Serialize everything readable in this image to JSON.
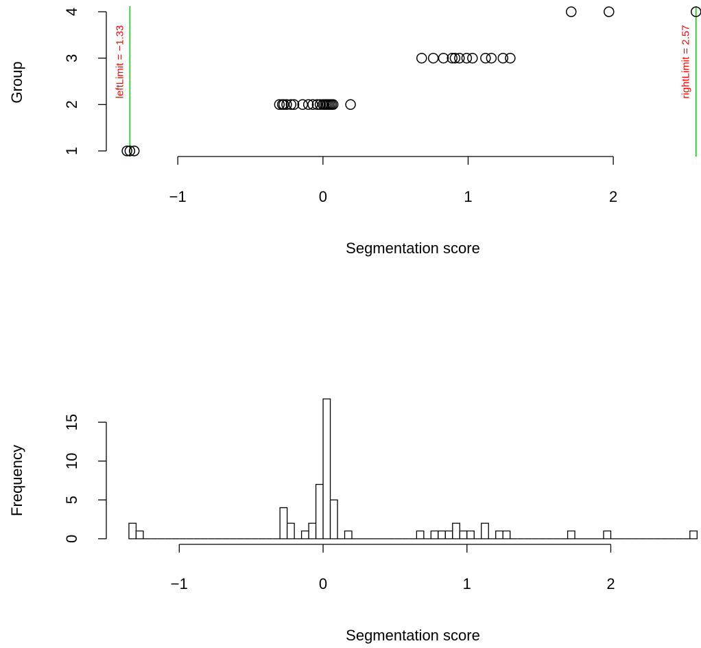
{
  "chart_data": [
    {
      "type": "scatter",
      "xlabel": "Segmentation score",
      "ylabel": "Group",
      "x": [
        -1.35,
        -1.33,
        -1.3,
        -0.3,
        -0.28,
        -0.27,
        -0.25,
        -0.22,
        -0.2,
        -0.14,
        -0.1,
        -0.07,
        -0.04,
        -0.02,
        0,
        0.01,
        0.02,
        0.03,
        0.04,
        0.05,
        0.06,
        0.07,
        0.19,
        0.68,
        0.76,
        0.83,
        0.89,
        0.91,
        0.94,
        0.99,
        1.03,
        1.12,
        1.16,
        1.24,
        1.29,
        1.71,
        1.97,
        2.57
      ],
      "y": [
        1,
        1,
        1,
        2,
        2,
        2,
        2,
        2,
        2,
        2,
        2,
        2,
        2,
        2,
        2,
        2,
        2,
        2,
        2,
        2,
        2,
        2,
        2,
        3,
        3,
        3,
        3,
        3,
        3,
        3,
        3,
        3,
        3,
        3,
        3,
        4,
        4,
        4
      ],
      "color": "#000000",
      "xlim": [
        -1.49,
        2.59
      ],
      "ylim": [
        0.88,
        4.12
      ],
      "xticks": [
        {
          "value": -1,
          "label": "−1"
        },
        0,
        1,
        2
      ],
      "yticks": [
        1,
        2,
        3,
        4
      ],
      "vlines": [
        {
          "value": -1.33,
          "label": "leftLimit = −1.33"
        },
        {
          "value": 2.57,
          "label": "rightLimit = 2.57"
        }
      ],
      "vline_color": "#00cc00",
      "vline_label_color": "#ff0000"
    },
    {
      "type": "histogram",
      "xlabel": "Segmentation score",
      "ylabel": "Frequency",
      "bins": [
        -1.35,
        -1.3,
        -1.25,
        -1.2,
        -1.15,
        -1.1,
        -1.05,
        -1,
        -0.95,
        -0.9,
        -0.85,
        -0.8,
        -0.75,
        -0.7,
        -0.65,
        -0.6,
        -0.55,
        -0.5,
        -0.45,
        -0.4,
        -0.35,
        -0.3,
        -0.25,
        -0.2,
        -0.15,
        -0.1,
        -0.05,
        0,
        0.05,
        0.1,
        0.15,
        0.2,
        0.25,
        0.3,
        0.35,
        0.4,
        0.45,
        0.5,
        0.55,
        0.6,
        0.65,
        0.7,
        0.75,
        0.8,
        0.85,
        0.9,
        0.95,
        1,
        1.05,
        1.1,
        1.15,
        1.2,
        1.25,
        1.3,
        1.35,
        1.4,
        1.45,
        1.5,
        1.55,
        1.6,
        1.65,
        1.7,
        1.75,
        1.8,
        1.85,
        1.9,
        1.95,
        2,
        2.05,
        2.1,
        2.15,
        2.2,
        2.25,
        2.3,
        2.35,
        2.4,
        2.45,
        2.5,
        2.55,
        2.6
      ],
      "counts": [
        2,
        1,
        0,
        0,
        0,
        0,
        0,
        0,
        0,
        0,
        0,
        0,
        0,
        0,
        0,
        0,
        0,
        0,
        0,
        0,
        0,
        4,
        2,
        0,
        1,
        2,
        7,
        18,
        5,
        0,
        1,
        0,
        0,
        0,
        0,
        0,
        0,
        0,
        0,
        0,
        1,
        0,
        1,
        1,
        1,
        2,
        1,
        1,
        0,
        2,
        0,
        1,
        1,
        0,
        0,
        0,
        0,
        0,
        0,
        0,
        0,
        1,
        0,
        0,
        0,
        0,
        1,
        0,
        0,
        0,
        0,
        0,
        0,
        0,
        0,
        0,
        0,
        0,
        1
      ],
      "color": "#ffffff",
      "edgecolor": "#000000",
      "xlim": [
        -1.5,
        2.6
      ],
      "ylim": [
        -0.72,
        18.72
      ],
      "xticks": [
        {
          "value": -1,
          "label": "−1"
        },
        0,
        1,
        2
      ],
      "yticks": [
        0,
        5,
        10,
        15
      ]
    }
  ]
}
